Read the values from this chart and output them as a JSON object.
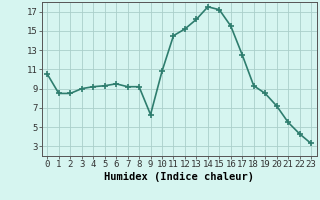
{
  "x": [
    0,
    1,
    2,
    3,
    4,
    5,
    6,
    7,
    8,
    9,
    10,
    11,
    12,
    13,
    14,
    15,
    16,
    17,
    18,
    19,
    20,
    21,
    22,
    23
  ],
  "y": [
    10.5,
    8.5,
    8.5,
    9.0,
    9.2,
    9.3,
    9.5,
    9.2,
    9.2,
    6.3,
    10.8,
    14.5,
    15.2,
    16.2,
    17.5,
    17.2,
    15.5,
    12.5,
    9.3,
    8.5,
    7.2,
    5.5,
    4.3,
    3.3
  ],
  "line_color": "#2e7d6e",
  "marker": "+",
  "marker_size": 4,
  "marker_lw": 1.2,
  "bg_color": "#d6f5f0",
  "grid_color": "#aacfca",
  "xlabel": "Humidex (Indice chaleur)",
  "xlim": [
    -0.5,
    23.5
  ],
  "ylim": [
    2.0,
    18.0
  ],
  "xticks": [
    0,
    1,
    2,
    3,
    4,
    5,
    6,
    7,
    8,
    9,
    10,
    11,
    12,
    13,
    14,
    15,
    16,
    17,
    18,
    19,
    20,
    21,
    22,
    23
  ],
  "yticks": [
    3,
    5,
    7,
    9,
    11,
    13,
    15,
    17
  ],
  "xlabel_fontsize": 7.5,
  "tick_fontsize": 6.5,
  "line_width": 1.2,
  "spine_color": "#555555"
}
